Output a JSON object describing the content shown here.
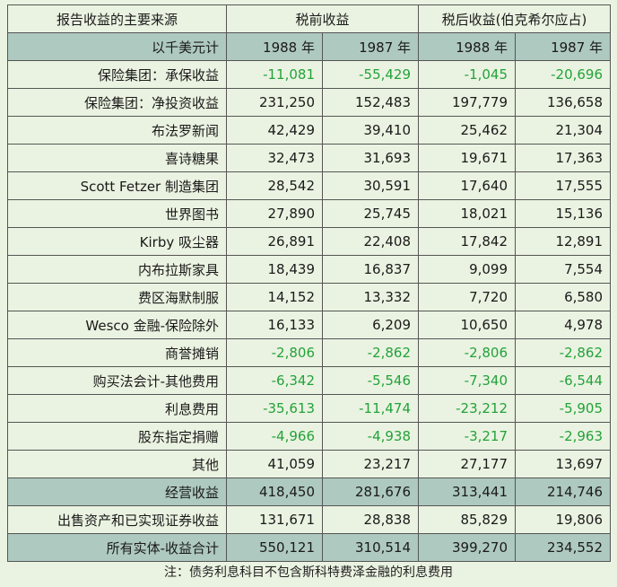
{
  "header": {
    "source_title": "报告收益的主要来源",
    "pretax_title": "税前收益",
    "aftertax_title": "税后收益(伯克希尔应占)",
    "unit_label": "以千美元计",
    "years": [
      "1988 年",
      "1987 年",
      "1988 年",
      "1987 年"
    ]
  },
  "rows": [
    {
      "label": "保险集团：承保收益",
      "values": [
        "-11,081",
        "-55,429",
        "-1,045",
        "-20,696"
      ],
      "negative": true
    },
    {
      "label": "保险集团：净投资收益",
      "values": [
        "231,250",
        "152,483",
        "197,779",
        "136,658"
      ],
      "negative": false
    },
    {
      "label": "布法罗新闻",
      "values": [
        "42,429",
        "39,410",
        "25,462",
        "21,304"
      ],
      "negative": false
    },
    {
      "label": "喜诗糖果",
      "values": [
        "32,473",
        "31,693",
        "19,671",
        "17,363"
      ],
      "negative": false
    },
    {
      "label": "Scott Fetzer 制造集团",
      "values": [
        "28,542",
        "30,591",
        "17,640",
        "17,555"
      ],
      "negative": false
    },
    {
      "label": "世界图书",
      "values": [
        "27,890",
        "25,745",
        "18,021",
        "15,136"
      ],
      "negative": false
    },
    {
      "label": "Kirby 吸尘器",
      "values": [
        "26,891",
        "22,408",
        "17,842",
        "12,891"
      ],
      "negative": false
    },
    {
      "label": "内布拉斯家具",
      "values": [
        "18,439",
        "16,837",
        "9,099",
        "7,554"
      ],
      "negative": false
    },
    {
      "label": "费区海默制服",
      "values": [
        "14,152",
        "13,332",
        "7,720",
        "6,580"
      ],
      "negative": false
    },
    {
      "label": "Wesco 金融-保险除外",
      "values": [
        "16,133",
        "6,209",
        "10,650",
        "4,978"
      ],
      "negative": false
    },
    {
      "label": "商誉摊销",
      "values": [
        "-2,806",
        "-2,862",
        "-2,806",
        "-2,862"
      ],
      "negative": true
    },
    {
      "label": "购买法会计-其他费用",
      "values": [
        "-6,342",
        "-5,546",
        "-7,340",
        "-6,544"
      ],
      "negative": true
    },
    {
      "label": "利息费用",
      "values": [
        "-35,613",
        "-11,474",
        "-23,212",
        "-5,905"
      ],
      "negative": true
    },
    {
      "label": "股东指定捐赠",
      "values": [
        "-4,966",
        "-4,938",
        "-3,217",
        "-2,963"
      ],
      "negative": true
    },
    {
      "label": "其他",
      "values": [
        "41,059",
        "23,217",
        "27,177",
        "13,697"
      ],
      "negative": false
    },
    {
      "label": "经营收益",
      "values": [
        "418,450",
        "281,676",
        "313,441",
        "214,746"
      ],
      "negative": false,
      "shaded": true
    },
    {
      "label": "出售资产和已实现证券收益",
      "values": [
        "131,671",
        "28,838",
        "85,829",
        "19,806"
      ],
      "negative": false
    },
    {
      "label": "所有实体-收益合计",
      "values": [
        "550,121",
        "310,514",
        "399,270",
        "234,552"
      ],
      "negative": false,
      "shaded": true
    }
  ],
  "footnote": "注：债务利息科目不包含斯科特费泽金融的利息费用",
  "colors": {
    "background": "#eaf3e1",
    "header_fill": "#aec9c0",
    "negative_text": "#23a23a",
    "border": "#555555"
  }
}
